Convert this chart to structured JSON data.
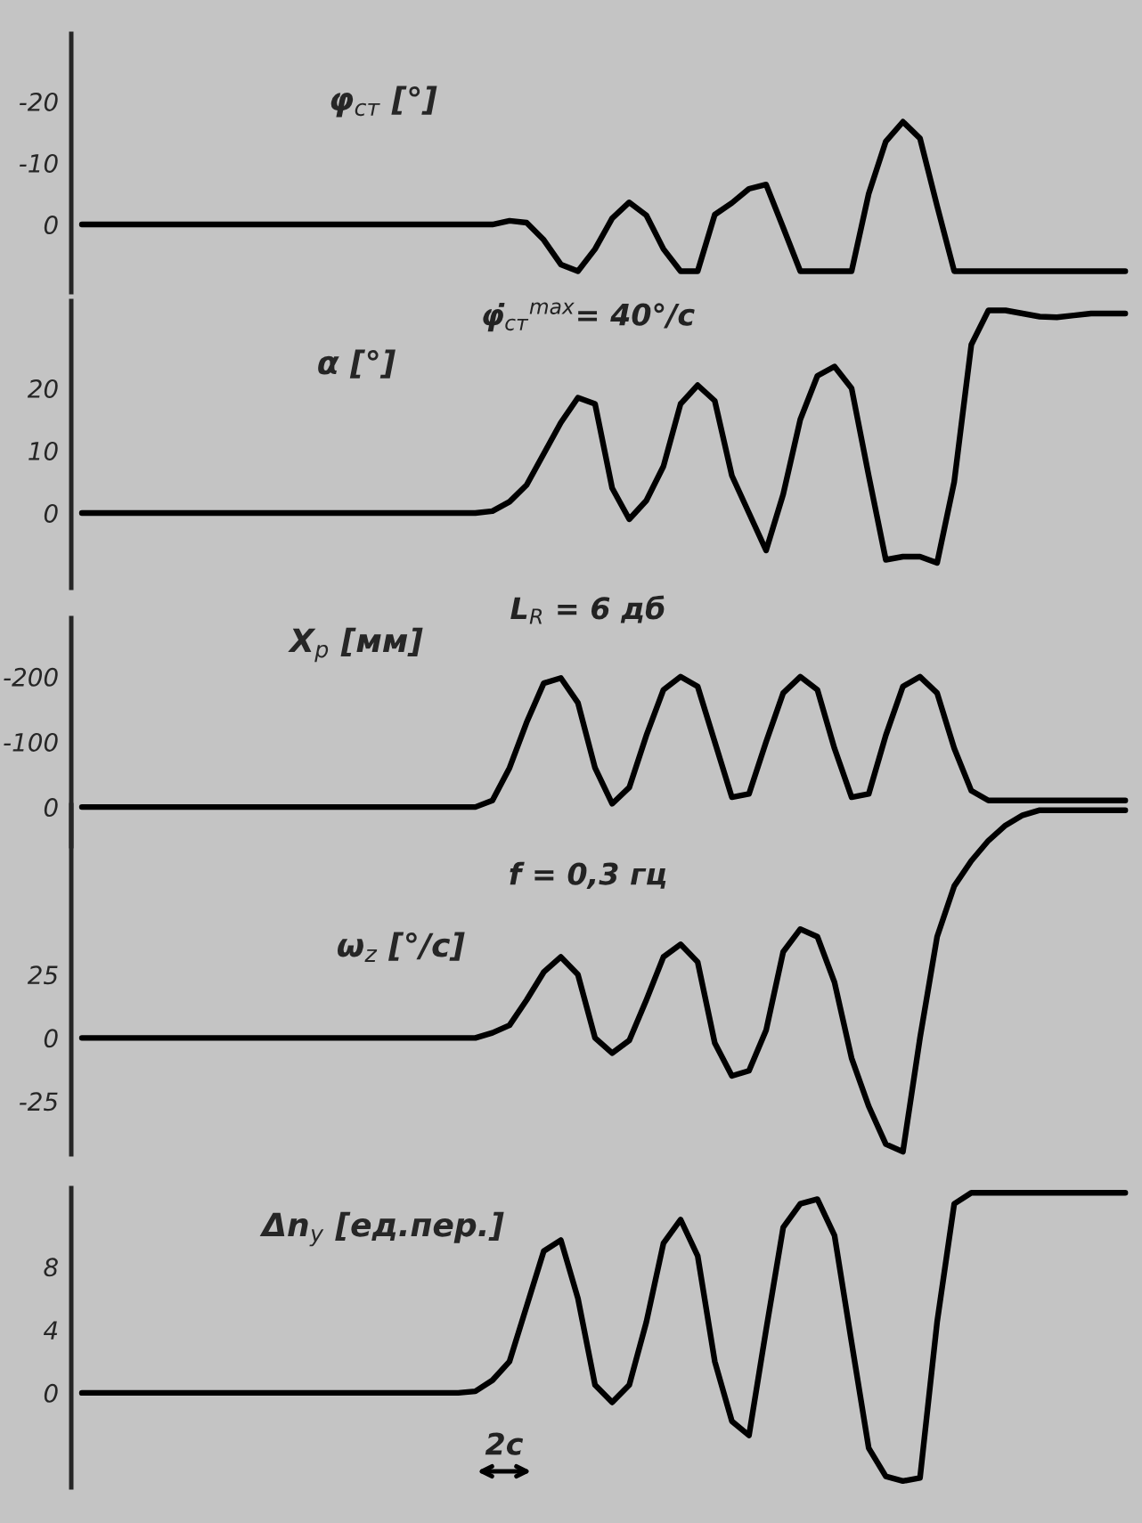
{
  "chart_data": [
    {
      "type": "line",
      "ylabel": "φ$_{ст}$ [°]",
      "categories": [
        null,
        null,
        null,
        null,
        null,
        null,
        null,
        null,
        null,
        null,
        null,
        null,
        null,
        null,
        null,
        null,
        null,
        null,
        null,
        null,
        null,
        null,
        null,
        null,
        null,
        null,
        null,
        null,
        null,
        null,
        null,
        null,
        null,
        null,
        null,
        null,
        null,
        null,
        null,
        null,
        null,
        null,
        null,
        null,
        null,
        null,
        null,
        null,
        null,
        null,
        null,
        null,
        null,
        null,
        null,
        null,
        null,
        null,
        null,
        null,
        null,
        null
      ],
      "ylim": [
        11,
        -31
      ],
      "yticks": [
        {
          "value": 0,
          "label": "0"
        },
        {
          "value": -10,
          "label": "-10"
        },
        {
          "value": -20,
          "label": "-20"
        }
      ],
      "tick_labels": "y",
      "series": [
        {
          "color": "#000000",
          "values": [
            0,
            0,
            0,
            0,
            0,
            0,
            0,
            0,
            0,
            0,
            0,
            0,
            0,
            0,
            0,
            0,
            0,
            0,
            0,
            0,
            0,
            0,
            0,
            0,
            0,
            -0.6,
            -0.3,
            2.5,
            6.5,
            7.6,
            4,
            -1,
            -3.6,
            -1.5,
            4,
            7.6,
            7.6,
            -1.6,
            -3.5,
            -5.8,
            -6.5,
            0.5,
            7.6,
            7.6,
            7.6,
            7.6,
            -5,
            -13.5,
            -16.7,
            -14,
            -3,
            7.6,
            7.6,
            7.6,
            7.6,
            7.6,
            7.6,
            7.6,
            7.6,
            7.6,
            7.6,
            7.6
          ]
        }
      ]
    },
    {
      "type": "line",
      "ylabel": "α [°]",
      "annotations": [
        "φ̇$_{ст}$$^{max}$= 40°/с"
      ],
      "categories": [
        null,
        null,
        null,
        null,
        null,
        null,
        null,
        null,
        null,
        null,
        null,
        null,
        null,
        null,
        null,
        null,
        null,
        null,
        null,
        null,
        null,
        null,
        null,
        null,
        null,
        null,
        null,
        null,
        null,
        null,
        null,
        null,
        null,
        null,
        null,
        null,
        null,
        null,
        null,
        null,
        null,
        null,
        null,
        null,
        null,
        null,
        null,
        null,
        null,
        null,
        null,
        null,
        null,
        null,
        null,
        null,
        null,
        null,
        null,
        null,
        null,
        null
      ],
      "ylim": [
        -12,
        34
      ],
      "yticks": [
        {
          "value": 0,
          "label": "0"
        },
        {
          "value": 10,
          "label": "10"
        },
        {
          "value": 20,
          "label": "20"
        }
      ],
      "tick_labels": "y",
      "series": [
        {
          "color": "#000000",
          "values": [
            0,
            0,
            0,
            0,
            0,
            0,
            0,
            0,
            0,
            0,
            0,
            0,
            0,
            0,
            0,
            0,
            0,
            0,
            0,
            0,
            0,
            0,
            0,
            0,
            0.3,
            1.8,
            4.5,
            9.5,
            14.5,
            18.5,
            17.5,
            4,
            -1,
            2,
            7.5,
            17.5,
            20.5,
            18,
            6,
            0,
            -6,
            3,
            15,
            22,
            23.5,
            20,
            6,
            -7.5,
            -7,
            -7,
            -8,
            5,
            27,
            32.5,
            32.5,
            32,
            31.5,
            31.4,
            31.7,
            32,
            32,
            32
          ]
        }
      ]
    },
    {
      "type": "line",
      "ylabel": "X$_{р}$ [мм]",
      "annotations": [
        "L$_{R}$ = 6 дб"
      ],
      "categories": [
        null,
        null,
        null,
        null,
        null,
        null,
        null,
        null,
        null,
        null,
        null,
        null,
        null,
        null,
        null,
        null,
        null,
        null,
        null,
        null,
        null,
        null,
        null,
        null,
        null,
        null,
        null,
        null,
        null,
        null,
        null,
        null,
        null,
        null,
        null,
        null,
        null,
        null,
        null,
        null,
        null,
        null,
        null,
        null,
        null,
        null,
        null,
        null,
        null,
        null,
        null,
        null,
        null,
        null,
        null,
        null,
        null,
        null,
        null,
        null,
        null,
        null
      ],
      "ylim": [
        60,
        -290
      ],
      "yticks": [
        {
          "value": 0,
          "label": "0"
        },
        {
          "value": -100,
          "label": "-100"
        },
        {
          "value": -200,
          "label": "-200"
        }
      ],
      "tick_labels": "y",
      "series": [
        {
          "color": "#000000",
          "values": [
            0,
            0,
            0,
            0,
            0,
            0,
            0,
            0,
            0,
            0,
            0,
            0,
            0,
            0,
            0,
            0,
            0,
            0,
            0,
            0,
            0,
            0,
            0,
            0,
            -10,
            -60,
            -130,
            -190,
            -198,
            -160,
            -60,
            -5,
            -30,
            -110,
            -180,
            -200,
            -185,
            -100,
            -15,
            -20,
            -100,
            -175,
            -200,
            -180,
            -90,
            -15,
            -20,
            -110,
            -185,
            -200,
            -175,
            -90,
            -25,
            -10,
            -10,
            -10,
            -10,
            -10,
            -10,
            -10,
            -10,
            -10
          ]
        }
      ]
    },
    {
      "type": "line",
      "ylabel": "ω$_{z}$ [°/с]",
      "annotations": [
        "f = 0,3 гц"
      ],
      "categories": [
        null,
        null,
        null,
        null,
        null,
        null,
        null,
        null,
        null,
        null,
        null,
        null,
        null,
        null,
        null,
        null,
        null,
        null,
        null,
        null,
        null,
        null,
        null,
        null,
        null,
        null,
        null,
        null,
        null,
        null,
        null,
        null,
        null,
        null,
        null,
        null,
        null,
        null,
        null,
        null,
        null,
        null,
        null,
        null,
        null,
        null,
        null,
        null,
        null,
        null,
        null,
        null,
        null,
        null,
        null,
        null,
        null,
        null,
        null,
        null,
        null,
        null
      ],
      "ylim": [
        -46,
        92
      ],
      "yticks": [
        {
          "value": 25,
          "label": "25"
        },
        {
          "value": 0,
          "label": "0"
        },
        {
          "value": -25,
          "label": "-25"
        }
      ],
      "tick_labels": "y",
      "series": [
        {
          "color": "#000000",
          "values": [
            0,
            0,
            0,
            0,
            0,
            0,
            0,
            0,
            0,
            0,
            0,
            0,
            0,
            0,
            0,
            0,
            0,
            0,
            0,
            0,
            0,
            0,
            0,
            0,
            2,
            5,
            15,
            26,
            32,
            25,
            0,
            -6,
            -1,
            15,
            32,
            37,
            30,
            -2,
            -15,
            -13,
            3,
            34,
            43,
            40,
            22,
            -8,
            -27,
            -42,
            -45,
            0,
            40,
            60,
            70,
            78,
            84,
            88,
            90,
            90,
            90,
            90,
            90,
            90
          ]
        }
      ]
    },
    {
      "type": "line",
      "ylabel": "Δn$_{y}$ [ед.пер.]",
      "annotations": [
        "2с"
      ],
      "categories": [
        null,
        null,
        null,
        null,
        null,
        null,
        null,
        null,
        null,
        null,
        null,
        null,
        null,
        null,
        null,
        null,
        null,
        null,
        null,
        null,
        null,
        null,
        null,
        null,
        null,
        null,
        null,
        null,
        null,
        null,
        null,
        null,
        null,
        null,
        null,
        null,
        null,
        null,
        null,
        null,
        null,
        null,
        null,
        null,
        null,
        null,
        null,
        null,
        null,
        null,
        null,
        null,
        null,
        null,
        null,
        null,
        null,
        null,
        null,
        null,
        null,
        null
      ],
      "ylim": [
        -6,
        13
      ],
      "yticks": [
        {
          "value": 8,
          "label": "8"
        },
        {
          "value": 4,
          "label": "4"
        },
        {
          "value": 0,
          "label": "0"
        }
      ],
      "tick_labels": "y",
      "series": [
        {
          "color": "#000000",
          "values": [
            0,
            0,
            0,
            0,
            0,
            0,
            0,
            0,
            0,
            0,
            0,
            0,
            0,
            0,
            0,
            0,
            0,
            0,
            0,
            0,
            0,
            0,
            0,
            0.1,
            0.8,
            2,
            5.5,
            9,
            9.7,
            6,
            0.5,
            -0.6,
            0.5,
            4.5,
            9.5,
            11,
            8.7,
            2,
            -1.8,
            -2.7,
            4,
            10.5,
            12,
            12.3,
            10,
            3.2,
            -3.5,
            -5.3,
            -5.6,
            -5.4,
            4.5,
            12,
            12.7,
            12.7,
            12.7,
            12.7,
            12.7,
            12.7,
            12.7,
            12.7,
            12.7,
            12.7
          ]
        }
      ]
    }
  ]
}
